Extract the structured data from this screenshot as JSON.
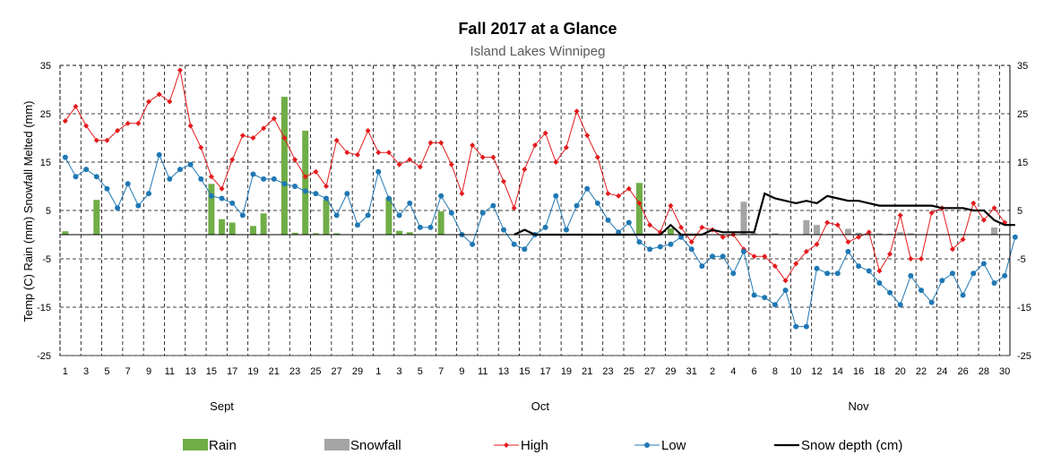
{
  "chart_data": {
    "type": "bar+line",
    "title": "Fall  2017 at a Glance",
    "subtitle": "Island Lakes Winnipeg",
    "ylabel": "Temp (C) Rain (mm) Snowfall Melted (mm)",
    "ylim": [
      -25,
      35
    ],
    "yticks": [
      35,
      25,
      15,
      5,
      -5,
      -15,
      -25
    ],
    "grid": true,
    "legend_position": "bottom",
    "months": [
      "Sept",
      "Oct",
      "Nov"
    ],
    "x_tick_labels": [
      "1",
      "3",
      "5",
      "7",
      "9",
      "11",
      "13",
      "15",
      "17",
      "19",
      "21",
      "23",
      "25",
      "27",
      "29",
      "1",
      "3",
      "5",
      "7",
      "9",
      "11",
      "13",
      "15",
      "17",
      "19",
      "21",
      "23",
      "25",
      "27",
      "29",
      "31",
      "2",
      "4",
      "6",
      "8",
      "10",
      "12",
      "14",
      "16",
      "18",
      "20",
      "22",
      "24",
      "26",
      "28",
      "30"
    ],
    "series": [
      {
        "name": "Rain",
        "kind": "bar",
        "color": "#70ad47",
        "values": [
          0.7,
          0,
          0,
          7.2,
          0,
          0,
          0,
          0,
          0,
          0,
          0,
          0,
          0,
          0,
          10.5,
          3.2,
          2.5,
          0,
          1.8,
          4.4,
          0,
          28.5,
          0.4,
          21.5,
          0.3,
          7.2,
          0.3,
          0,
          0,
          0,
          0,
          7.6,
          0.8,
          0.5,
          0,
          0,
          4.8,
          0,
          0,
          0,
          0,
          0,
          0,
          0,
          0,
          0,
          0,
          0,
          0,
          0,
          0,
          0,
          0,
          0,
          0,
          10.7,
          0,
          0,
          1.3,
          0,
          0,
          0,
          0,
          0,
          0,
          0,
          0,
          0,
          0,
          0,
          0,
          0,
          0,
          0,
          0,
          0,
          0,
          0,
          0,
          0,
          0,
          0,
          0,
          0,
          0,
          0,
          0,
          0,
          0,
          0,
          0
        ]
      },
      {
        "name": "Snowfall",
        "kind": "bar",
        "color": "#a5a5a5",
        "values": [
          0,
          0,
          0,
          0,
          0,
          0,
          0,
          0,
          0,
          0,
          0,
          0,
          0,
          0,
          0,
          0,
          0,
          0,
          0,
          0,
          0,
          0,
          0,
          0,
          0,
          0,
          0,
          0,
          0,
          0,
          0,
          0,
          0,
          0,
          0,
          0,
          0,
          0,
          0,
          0,
          0,
          0,
          0,
          0,
          0,
          0,
          0,
          0,
          0,
          0,
          0,
          0,
          0,
          0,
          0,
          0,
          0,
          0,
          0,
          0,
          0,
          0,
          0,
          0,
          0,
          6.8,
          0.3,
          0,
          0.3,
          0,
          0,
          3,
          2,
          0,
          0,
          1.2,
          0.4,
          0.2,
          0.3,
          0.2,
          0.5,
          0.3,
          0,
          0,
          0,
          0,
          0,
          0,
          0,
          1.5,
          0
        ]
      },
      {
        "name": "High",
        "kind": "line",
        "color": "#e31a1c",
        "values": [
          23.5,
          26.5,
          22.5,
          19.5,
          19.5,
          21.5,
          23,
          23,
          27.5,
          29,
          27.5,
          34,
          22.5,
          18,
          12,
          9.5,
          15.5,
          20.5,
          20,
          22,
          24,
          20,
          15.5,
          12,
          13,
          10,
          19.5,
          17,
          16.5,
          21.5,
          17,
          17,
          14.5,
          15.5,
          14,
          19,
          19,
          14.5,
          8.5,
          18.5,
          16,
          16,
          11,
          5.5,
          13.5,
          18.5,
          21,
          15,
          18,
          25.5,
          20.5,
          16,
          8.5,
          8,
          9.5,
          6.5,
          2,
          0.5,
          6,
          1.5,
          -1.5,
          1.5,
          1,
          -0.5,
          0,
          -3,
          -4.5,
          -4.5,
          -6.5,
          -9.5,
          -6,
          -3.5,
          -2,
          2.5,
          2,
          -1.5,
          -0.5,
          0.5,
          -7.5,
          -4,
          4,
          -5,
          -5,
          4.5,
          5.5,
          -3,
          -1,
          6.5,
          3,
          5.5,
          2.5
        ]
      },
      {
        "name": "Low",
        "kind": "line",
        "color": "#1f78b4",
        "values": [
          16,
          12,
          13.5,
          12,
          9.5,
          5.5,
          10.5,
          6,
          8.5,
          16.5,
          11.5,
          13.5,
          14.5,
          11.5,
          8,
          7.5,
          6.5,
          4,
          12.5,
          11.5,
          11.5,
          10.5,
          10,
          9,
          8.5,
          7.5,
          4,
          8.5,
          2,
          4,
          13,
          7.5,
          4,
          6.5,
          1.5,
          1.5,
          8,
          4.5,
          0,
          -2,
          4.5,
          6,
          1,
          -2,
          -3,
          0,
          1.5,
          8,
          1,
          6,
          9.5,
          6.5,
          3,
          0.5,
          2.5,
          -1.5,
          -3,
          -2.5,
          -2,
          -0.5,
          -3,
          -6.5,
          -4.5,
          -4.5,
          -8,
          -3.5,
          -12.5,
          -13,
          -14.5,
          -11.5,
          -19,
          -19,
          -7,
          -8,
          -8,
          -3.5,
          -6.5,
          -7.5,
          -10,
          -12,
          -14.5,
          -8.5,
          -11.5,
          -14,
          -9.5,
          -8,
          -12.5,
          -8,
          -6,
          -10,
          -8.5,
          -0.5
        ]
      },
      {
        "name": "Snow depth (cm)",
        "kind": "line",
        "color": "#000000",
        "values": [
          null,
          null,
          null,
          null,
          null,
          null,
          null,
          null,
          null,
          null,
          null,
          null,
          null,
          null,
          null,
          null,
          null,
          null,
          null,
          null,
          null,
          null,
          null,
          null,
          null,
          null,
          null,
          null,
          null,
          null,
          null,
          null,
          null,
          null,
          null,
          null,
          null,
          null,
          null,
          null,
          null,
          null,
          null,
          0,
          1,
          0,
          0,
          0,
          0,
          0,
          0,
          0,
          0,
          0,
          0,
          0,
          0,
          0,
          2,
          0,
          0,
          0,
          1,
          0.5,
          0.5,
          0.5,
          0.5,
          8.5,
          7.5,
          7,
          6.5,
          7,
          6.5,
          8,
          7.5,
          7,
          7,
          6.5,
          6,
          6,
          6,
          6,
          6,
          6,
          5.5,
          5.5,
          5.5,
          5,
          5,
          3,
          2,
          2
        ]
      }
    ]
  }
}
